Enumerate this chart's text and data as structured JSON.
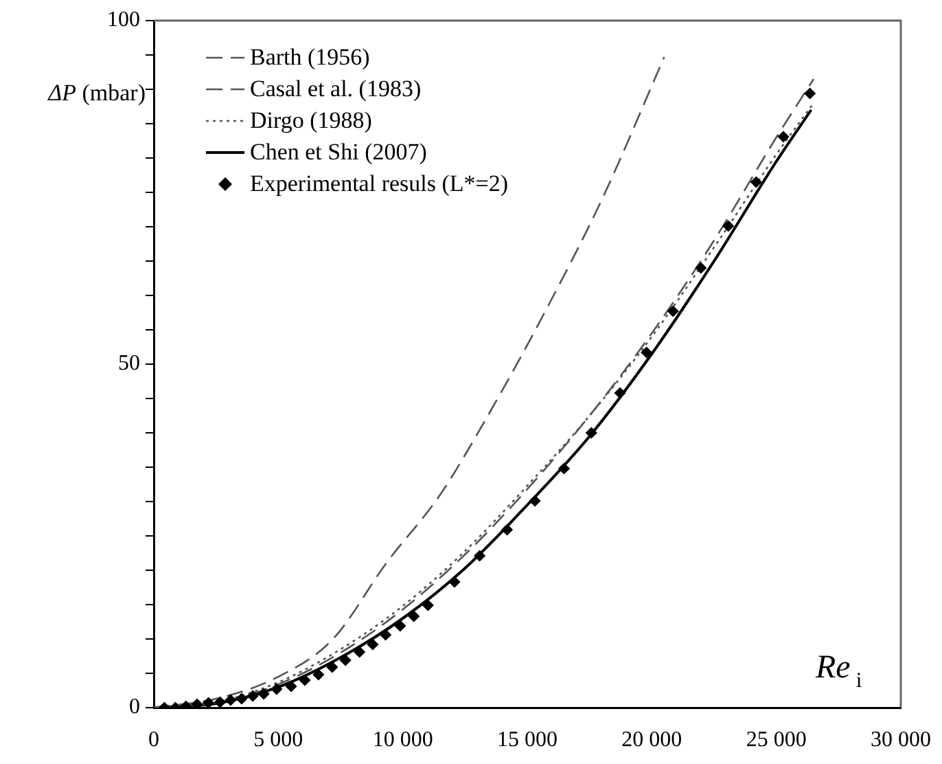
{
  "chart_data": {
    "type": "line",
    "xlabel": "Re$_{i}$",
    "ylabel": "ΔP (mbar)",
    "xlim": [
      0,
      30000
    ],
    "ylim": [
      0,
      100
    ],
    "xticks": [
      0,
      {
        "value": 5000,
        "label": "5 000"
      },
      {
        "value": 10000,
        "label": "10 000"
      },
      {
        "value": 15000,
        "label": "15 000"
      },
      {
        "value": 20000,
        "label": "20 000"
      },
      {
        "value": 25000,
        "label": "25 000"
      },
      {
        "value": 30000,
        "label": "30 000"
      }
    ],
    "yticks": [
      0,
      {
        "value": 5,
        "label": null
      },
      {
        "value": 10,
        "label": null
      },
      {
        "value": 15,
        "label": null
      },
      {
        "value": 20,
        "label": null
      },
      {
        "value": 25,
        "label": null
      },
      {
        "value": 30,
        "label": null
      },
      {
        "value": 35,
        "label": null
      },
      {
        "value": 40,
        "label": null
      },
      {
        "value": 45,
        "label": null
      },
      50,
      {
        "value": 55,
        "label": null
      },
      {
        "value": 60,
        "label": null
      },
      {
        "value": 65,
        "label": null
      },
      {
        "value": 70,
        "label": null
      },
      {
        "value": 75,
        "label": null
      },
      {
        "value": 80,
        "label": null
      },
      {
        "value": 85,
        "label": null
      },
      {
        "value": 90,
        "label": null
      },
      {
        "value": 95,
        "label": null
      },
      100
    ],
    "grid": false,
    "legend": "top left",
    "series": [
      {
        "name": "Barth (1956)",
        "color": "#555555",
        "line_style": "dashed",
        "marker": "none",
        "x": [
          0,
          2500,
          5000,
          7200,
          9330,
          11500,
          13400,
          15620,
          18000,
          20500
        ],
        "values": [
          0,
          1.3,
          4.5,
          10,
          21,
          31,
          42.4,
          57,
          74,
          94.7
        ]
      },
      {
        "name": "Casal et al. (1983)",
        "color": "#555555",
        "line_style": "dashed",
        "marker": "none",
        "x": [
          0,
          2500,
          5000,
          7500,
          10000,
          12500,
          15000,
          17500,
          20000,
          22500,
          25000,
          26500
        ],
        "values": [
          0,
          0.7,
          3.4,
          8,
          14.3,
          22.3,
          31.8,
          42.5,
          54.5,
          68,
          83,
          91.5
        ]
      },
      {
        "name": "Dirgo (1988)",
        "color": "#555555",
        "line_style": "dotted",
        "marker": "none",
        "x": [
          0,
          2500,
          5000,
          7500,
          10000,
          12500,
          15000,
          17500,
          20000,
          22500,
          25000,
          26500
        ],
        "values": [
          0,
          0.8,
          3.7,
          8.5,
          14.8,
          22.8,
          32.3,
          42.5,
          54,
          67,
          80.5,
          88
        ]
      },
      {
        "name": "Chen et Shi (2007)",
        "color": "#000000",
        "line_style": "solid",
        "marker": "none",
        "x": [
          0,
          2500,
          5000,
          7500,
          10000,
          12500,
          15000,
          17500,
          20000,
          22500,
          25000,
          26400
        ],
        "values": [
          0,
          0.6,
          3,
          7.3,
          13,
          20.3,
          29.5,
          39.5,
          51.5,
          65,
          79.5,
          87
        ]
      },
      {
        "name": "Experimental resuls (L*=2)",
        "type": "scatter",
        "color": "#000000",
        "marker": "diamond",
        "x": [
          426,
          867,
          1293,
          1740,
          2197,
          2660,
          3086,
          3528,
          3975,
          4416,
          4932,
          5517,
          6065,
          6613,
          7166,
          7698,
          8262,
          8794,
          9310,
          9895,
          10443,
          11012,
          12077,
          13087,
          14188,
          15305,
          16476,
          17573,
          18726,
          19790,
          20854,
          21972,
          23072,
          24190,
          25286,
          26350
        ],
        "values": [
          0,
          0,
          0.2,
          0.5,
          0.7,
          0.8,
          1.1,
          1.3,
          1.7,
          2,
          2.7,
          3.1,
          4,
          4.8,
          5.9,
          6.9,
          8.1,
          9.2,
          10.6,
          11.9,
          13.3,
          14.9,
          18.3,
          22.1,
          25.9,
          30.1,
          34.8,
          40,
          45.8,
          51.7,
          57.7,
          64,
          70.1,
          76.5,
          83.1,
          89.4
        ]
      }
    ]
  }
}
